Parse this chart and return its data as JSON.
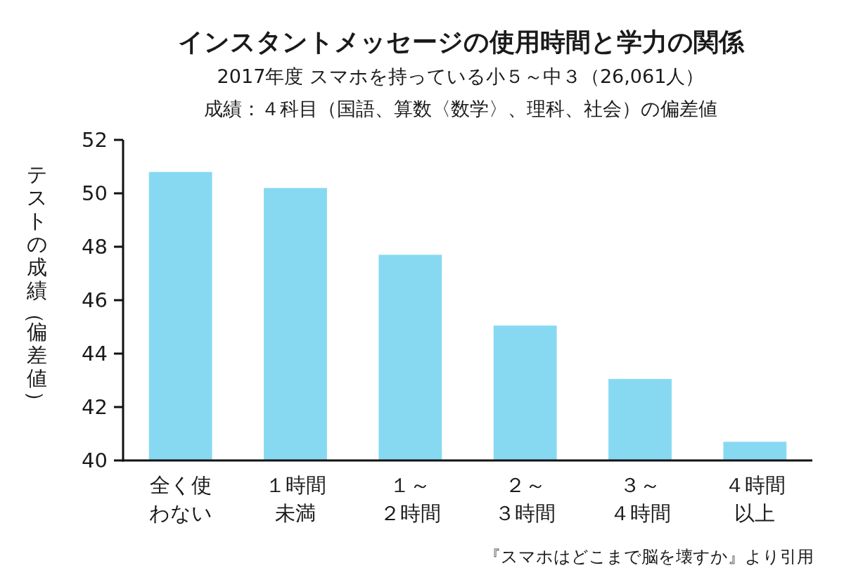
{
  "chart_data": {
    "type": "bar",
    "title": "インスタントメッセージの使用時間と学力の関係",
    "subtitle": "2017年度 スマホを持っている小５～中３（26,061人）",
    "ylabel": "テストの成績（偏差値）",
    "categories": [
      "全く使わない",
      "１時間未満",
      "１～２時間",
      "２～３時間",
      "３～４時間",
      "４時間以上"
    ],
    "values": [
      50.8,
      50.2,
      47.7,
      45.05,
      43.05,
      40.7
    ],
    "color": "#87d9f2",
    "ylim": [
      40,
      52
    ],
    "yticks": [
      40,
      42,
      44,
      46,
      48,
      50,
      52
    ],
    "grid": false,
    "annotations": [
      "成績：４科目（国語、算数〈数学〉、理科、社会）の偏差値",
      "『スマホはどこまで脳を壊すか』より引用"
    ]
  }
}
